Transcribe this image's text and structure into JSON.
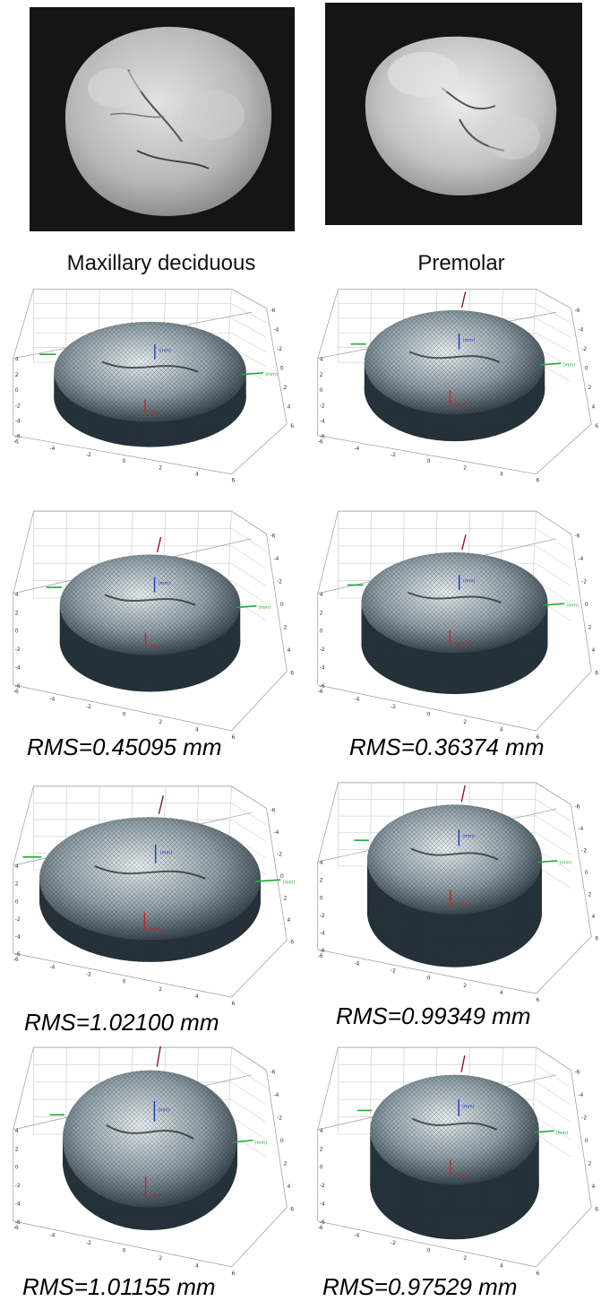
{
  "columns": {
    "left_label": "Maxillary deciduous",
    "right_label": "Premolar"
  },
  "plot_label_unit": "(mm)",
  "rows": [
    {
      "left_rms": "",
      "right_rms": ""
    },
    {
      "left_rms": "RMS=0.45095 mm",
      "right_rms": "RMS=0.36374 mm"
    },
    {
      "left_rms": "RMS=1.02100 mm",
      "right_rms": "RMS=0.99349 mm"
    },
    {
      "left_rms": "RMS=1.01155 mm",
      "right_rms": "RMS=0.97529 mm"
    }
  ],
  "axis_ticks": {
    "z": [
      "4",
      "2",
      "0",
      "-2",
      "-4",
      "-6"
    ],
    "x": [
      "-6",
      "-4",
      "-2",
      "0",
      "2",
      "4",
      "6"
    ],
    "y": [
      "-6",
      "-4",
      "-2",
      "0",
      "2",
      "4",
      "6"
    ]
  },
  "colors": {
    "photo_bg": "#151515",
    "tooth_photo": "#c9c9c9",
    "mesh_dark": "#26323a",
    "mesh_light": "#e8eef0",
    "axis_x": "#cc2222",
    "axis_y": "#22aa33",
    "axis_z": "#2233cc"
  }
}
